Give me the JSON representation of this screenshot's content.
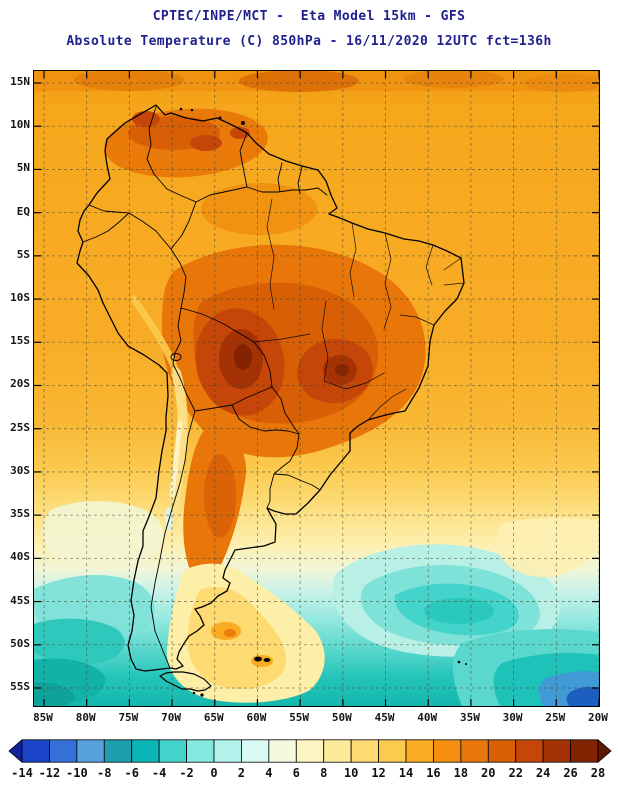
{
  "header": {
    "title_line1": "CPTEC/INPE/MCT -  Eta Model 15km - GFS",
    "title_line2": "Absolute Temperature (C) 850hPa - 16/11/2020 12UTC fct=136h",
    "title_color": "#20208e"
  },
  "map": {
    "lat_labels": [
      "15N",
      "10N",
      "5N",
      "EQ",
      "5S",
      "10S",
      "15S",
      "20S",
      "25S",
      "30S",
      "35S",
      "40S",
      "45S",
      "50S",
      "55S"
    ],
    "lon_labels": [
      "85W",
      "80W",
      "75W",
      "70W",
      "65W",
      "60W",
      "55W",
      "50W",
      "45W",
      "40W",
      "35W",
      "30W",
      "25W",
      "20W"
    ]
  },
  "colorbar": {
    "ticks": [
      "-14",
      "-12",
      "-10",
      "-8",
      "-6",
      "-4",
      "-2",
      "0",
      "2",
      "4",
      "6",
      "8",
      "10",
      "12",
      "14",
      "16",
      "18",
      "20",
      "22",
      "24",
      "26",
      "28"
    ],
    "colors": [
      "#10239a",
      "#1c44c8",
      "#3570d8",
      "#58a0dc",
      "#1f9eae",
      "#0db6b6",
      "#44d4cc",
      "#84e8e0",
      "#b4f2ec",
      "#d9f9f4",
      "#f4f9e0",
      "#fdf4c2",
      "#fdea9a",
      "#fdda72",
      "#fbca4e",
      "#f9ab22",
      "#f68f10",
      "#e87609",
      "#d85f06",
      "#c64508",
      "#a53204",
      "#832302",
      "#5c1801"
    ]
  }
}
